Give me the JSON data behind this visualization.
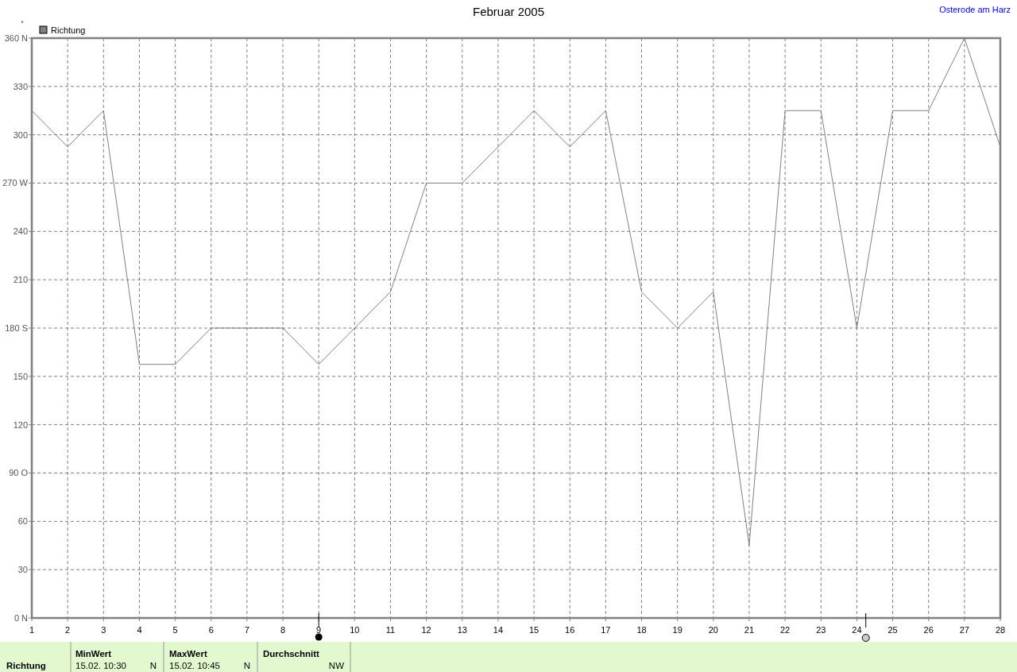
{
  "chart_data": {
    "type": "line",
    "title": "Februar 2005",
    "ylabel": "°",
    "annotations": [
      "Osterode am Harz",
      "Richtung",
      "MinWert",
      "15.02.  10:30",
      "N",
      "MaxWert",
      "15.02.  10:45",
      "N",
      "Durchschnitt",
      "NW"
    ],
    "x": [
      1,
      2,
      3,
      4,
      5,
      6,
      7,
      8,
      9,
      10,
      11,
      12,
      13,
      14,
      15,
      16,
      17,
      18,
      19,
      20,
      21,
      22,
      23,
      24,
      25,
      26,
      27,
      28
    ],
    "series": [
      {
        "name": "Richtung",
        "color": "#808080",
        "values": [
          315,
          292.5,
          315,
          157.5,
          157.5,
          180,
          180,
          180,
          157.5,
          180,
          202.5,
          270,
          270,
          292.5,
          315,
          292.5,
          315,
          202.5,
          180,
          202.5,
          45,
          315,
          315,
          180,
          315,
          315,
          360,
          292.5
        ]
      }
    ],
    "xlim": [
      1,
      28
    ],
    "xticks": [
      1,
      2,
      3,
      4,
      5,
      6,
      7,
      8,
      9,
      10,
      11,
      12,
      13,
      14,
      15,
      16,
      17,
      18,
      19,
      20,
      21,
      22,
      23,
      24,
      25,
      26,
      27,
      28
    ],
    "ylim": [
      0,
      360
    ],
    "yticks": [
      {
        "value": 0,
        "label": "0  N"
      },
      30,
      60,
      {
        "value": 90,
        "label": "90  O"
      },
      120,
      150,
      {
        "value": 180,
        "label": "180 S"
      },
      210,
      240,
      {
        "value": 270,
        "label": "270 W"
      },
      300,
      330,
      {
        "value": 360,
        "label": "360 N"
      }
    ],
    "grid": true,
    "legend": "top left",
    "marker": "none",
    "line_style": "solid"
  }
}
